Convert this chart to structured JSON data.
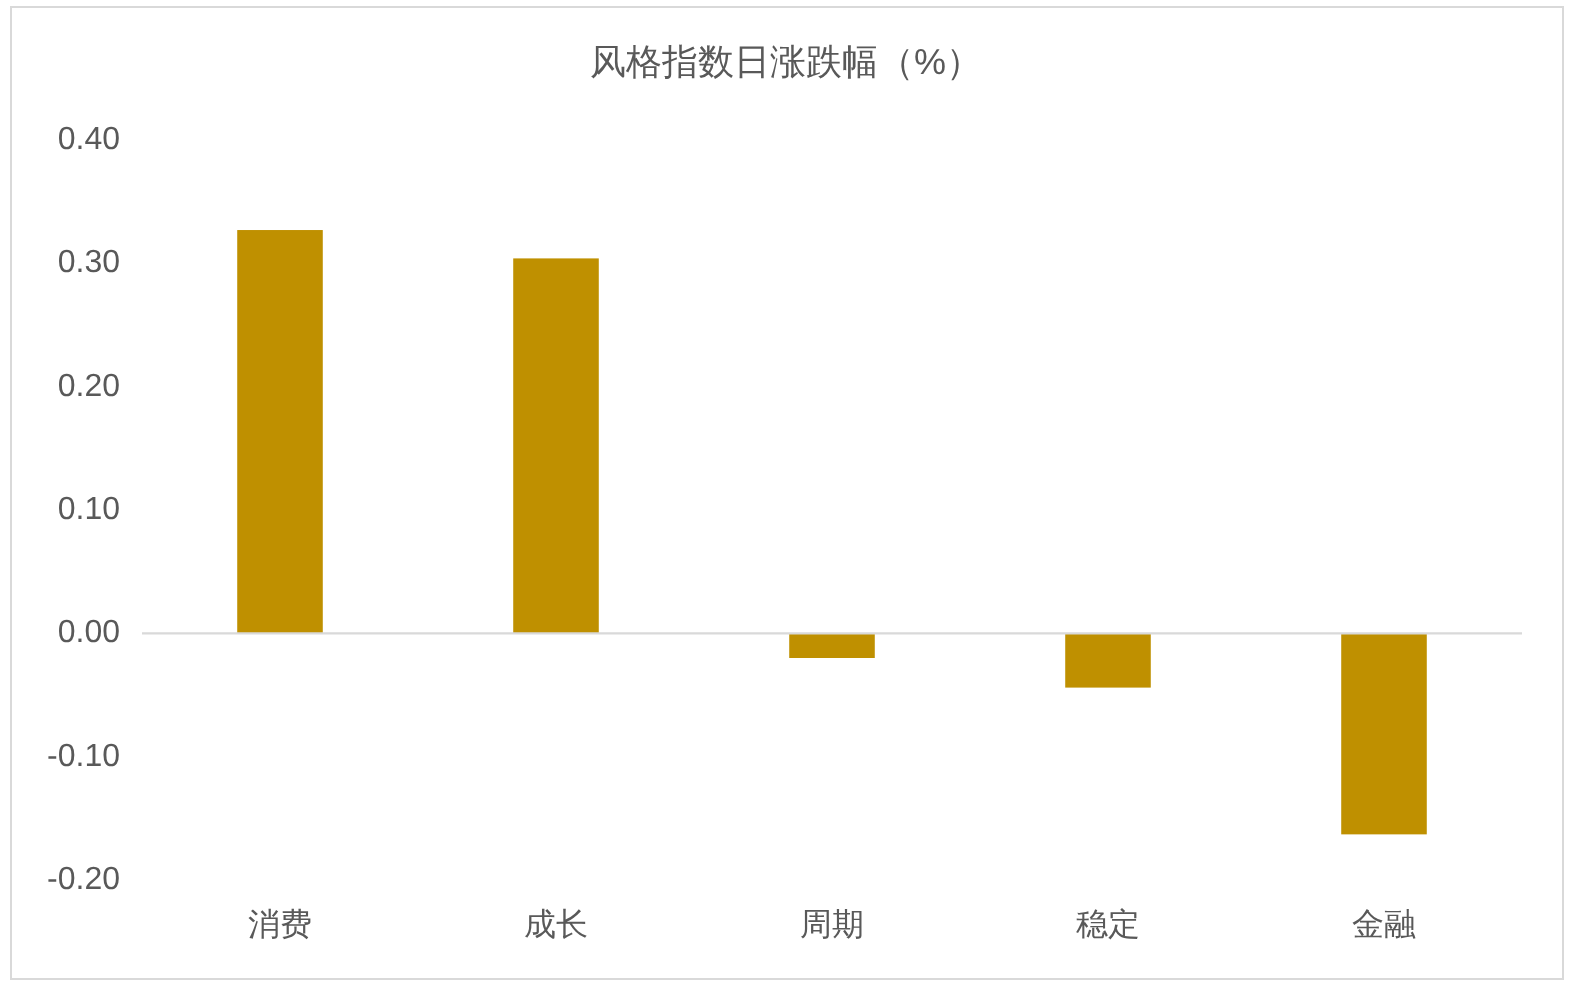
{
  "chart_data": {
    "type": "bar",
    "title": "风格指数日涨跌幅（%）",
    "categories": [
      "消费",
      "成长",
      "周期",
      "稳定",
      "金融"
    ],
    "values": [
      0.327,
      0.304,
      -0.02,
      -0.044,
      -0.163
    ],
    "color": "#bf9000",
    "ylim": [
      -0.2,
      0.4
    ],
    "yticks": [
      {
        "value": -0.2,
        "label": "-0.20"
      },
      {
        "value": -0.1,
        "label": "-0.10"
      },
      {
        "value": 0,
        "label": "0.00"
      },
      {
        "value": 0.1,
        "label": "0.10"
      },
      {
        "value": 0.2,
        "label": "0.20"
      },
      {
        "value": 0.3,
        "label": "0.30"
      },
      {
        "value": 0.4,
        "label": "0.40"
      }
    ]
  }
}
